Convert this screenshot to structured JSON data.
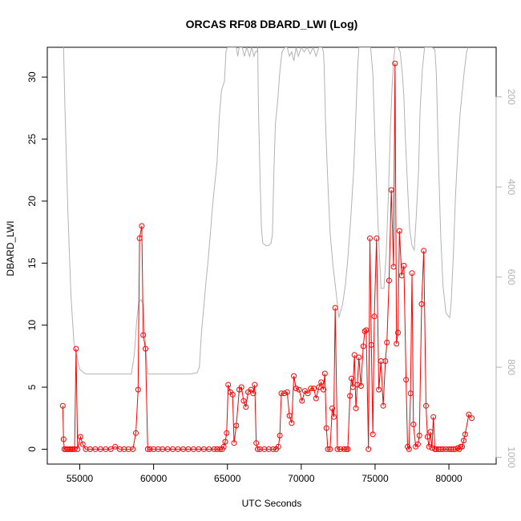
{
  "chart_data": {
    "type": "line",
    "title": "ORCAS RF08 DBARD_LWI (Log)",
    "xlabel": "UTC Seconds",
    "ylabel": "DBARD_LWI",
    "xlim": [
      52800,
      83200
    ],
    "ylim": [
      -1.2,
      32.4
    ],
    "x_ticks": [
      55000,
      60000,
      65000,
      70000,
      75000,
      80000
    ],
    "y_ticks": [
      0,
      5,
      10,
      15,
      20,
      25,
      30
    ],
    "y2_ticks": [
      200,
      400,
      600,
      800,
      1000
    ],
    "y2_reversed": true,
    "y2lim": [
      1015,
      90
    ],
    "grid": false,
    "series": [
      {
        "role": "primary",
        "color": "#ff0000",
        "marker": "open-circle",
        "line": true,
        "points": [
          [
            53850,
            3.5
          ],
          [
            53900,
            0.8
          ],
          [
            53950,
            0.0
          ],
          [
            54050,
            0.0
          ],
          [
            54150,
            0.0
          ],
          [
            54250,
            0.0
          ],
          [
            54350,
            0.0
          ],
          [
            54450,
            0.0
          ],
          [
            54550,
            0.0
          ],
          [
            54650,
            0.0
          ],
          [
            54750,
            8.1
          ],
          [
            54850,
            0.0
          ],
          [
            55050,
            1.0
          ],
          [
            55200,
            0.4
          ],
          [
            55400,
            0.0
          ],
          [
            55700,
            0.0
          ],
          [
            56050,
            0.0
          ],
          [
            56400,
            0.0
          ],
          [
            56750,
            0.0
          ],
          [
            57100,
            0.0
          ],
          [
            57400,
            0.2
          ],
          [
            57700,
            0.0
          ],
          [
            58000,
            0.0
          ],
          [
            58300,
            0.0
          ],
          [
            58600,
            0.0
          ],
          [
            58800,
            1.3
          ],
          [
            58950,
            4.8
          ],
          [
            59050,
            17.0
          ],
          [
            59200,
            18.0
          ],
          [
            59300,
            9.2
          ],
          [
            59450,
            8.1
          ],
          [
            59600,
            0.0
          ],
          [
            59750,
            0.0
          ],
          [
            60000,
            0.0
          ],
          [
            60300,
            0.0
          ],
          [
            60600,
            0.0
          ],
          [
            60950,
            0.0
          ],
          [
            61300,
            0.0
          ],
          [
            61650,
            0.0
          ],
          [
            62000,
            0.0
          ],
          [
            62350,
            0.0
          ],
          [
            62700,
            0.0
          ],
          [
            63050,
            0.0
          ],
          [
            63400,
            0.0
          ],
          [
            63750,
            0.0
          ],
          [
            64100,
            0.0
          ],
          [
            64300,
            0.0
          ],
          [
            64500,
            0.0
          ],
          [
            64650,
            0.0
          ],
          [
            64750,
            0.2
          ],
          [
            64850,
            0.6
          ],
          [
            64950,
            1.3
          ],
          [
            65050,
            5.2
          ],
          [
            65200,
            4.6
          ],
          [
            65350,
            4.4
          ],
          [
            65450,
            0.5
          ],
          [
            65600,
            1.9
          ],
          [
            65800,
            4.8
          ],
          [
            65950,
            5.0
          ],
          [
            66100,
            3.9
          ],
          [
            66250,
            3.4
          ],
          [
            66400,
            4.6
          ],
          [
            66600,
            4.8
          ],
          [
            66750,
            4.5
          ],
          [
            66850,
            5.2
          ],
          [
            66950,
            0.5
          ],
          [
            67050,
            0.0
          ],
          [
            67200,
            0.0
          ],
          [
            67500,
            0.0
          ],
          [
            67800,
            0.0
          ],
          [
            68100,
            0.0
          ],
          [
            68300,
            0.0
          ],
          [
            68450,
            0.2
          ],
          [
            68550,
            1.1
          ],
          [
            68650,
            4.5
          ],
          [
            68850,
            4.5
          ],
          [
            69050,
            4.6
          ],
          [
            69200,
            2.7
          ],
          [
            69350,
            2.1
          ],
          [
            69500,
            5.9
          ],
          [
            69650,
            4.9
          ],
          [
            69850,
            4.8
          ],
          [
            70050,
            3.9
          ],
          [
            70250,
            4.7
          ],
          [
            70450,
            4.5
          ],
          [
            70650,
            4.9
          ],
          [
            70850,
            4.9
          ],
          [
            71000,
            4.1
          ],
          [
            71200,
            5.0
          ],
          [
            71350,
            5.4
          ],
          [
            71500,
            4.8
          ],
          [
            71600,
            6.1
          ],
          [
            71700,
            1.7
          ],
          [
            71800,
            0.0
          ],
          [
            71950,
            0.0
          ],
          [
            72100,
            3.3
          ],
          [
            72200,
            2.6
          ],
          [
            72300,
            11.4
          ],
          [
            72450,
            0.0
          ],
          [
            72650,
            0.0
          ],
          [
            72900,
            0.0
          ],
          [
            73050,
            0.0
          ],
          [
            73150,
            0.0
          ],
          [
            73300,
            4.3
          ],
          [
            73400,
            5.7
          ],
          [
            73500,
            5.0
          ],
          [
            73600,
            7.6
          ],
          [
            73700,
            3.3
          ],
          [
            73800,
            5.2
          ],
          [
            73900,
            7.4
          ],
          [
            74050,
            5.1
          ],
          [
            74200,
            8.3
          ],
          [
            74300,
            9.5
          ],
          [
            74400,
            9.6
          ],
          [
            74550,
            0.0
          ],
          [
            74650,
            17.0
          ],
          [
            74750,
            8.4
          ],
          [
            74850,
            1.2
          ],
          [
            74950,
            10.7
          ],
          [
            75100,
            17.0
          ],
          [
            75250,
            4.8
          ],
          [
            75400,
            7.1
          ],
          [
            75550,
            3.5
          ],
          [
            75700,
            7.1
          ],
          [
            75800,
            8.6
          ],
          [
            75950,
            13.6
          ],
          [
            76100,
            20.9
          ],
          [
            76250,
            14.7
          ],
          [
            76350,
            31.1
          ],
          [
            76450,
            8.5
          ],
          [
            76550,
            9.4
          ],
          [
            76650,
            17.6
          ],
          [
            76800,
            14.0
          ],
          [
            76950,
            14.8
          ],
          [
            77100,
            5.6
          ],
          [
            77200,
            0.2
          ],
          [
            77300,
            0.0
          ],
          [
            77400,
            4.5
          ],
          [
            77500,
            14.2
          ],
          [
            77600,
            2.0
          ],
          [
            77750,
            0.2
          ],
          [
            77900,
            0.4
          ],
          [
            78000,
            1.1
          ],
          [
            78150,
            11.7
          ],
          [
            78300,
            16.0
          ],
          [
            78450,
            3.5
          ],
          [
            78550,
            1.0
          ],
          [
            78650,
            0.2
          ],
          [
            78750,
            1.4
          ],
          [
            78850,
            0.1
          ],
          [
            78950,
            2.6
          ],
          [
            79050,
            0.0
          ],
          [
            79150,
            0.0
          ],
          [
            79300,
            0.0
          ],
          [
            79450,
            0.0
          ],
          [
            79600,
            0.0
          ],
          [
            79800,
            0.0
          ],
          [
            80000,
            0.0
          ],
          [
            80150,
            0.0
          ],
          [
            80300,
            0.0
          ],
          [
            80450,
            0.0
          ],
          [
            80600,
            0.1
          ],
          [
            80700,
            0.0
          ],
          [
            80800,
            0.2
          ],
          [
            80900,
            0.2
          ],
          [
            81000,
            0.7
          ],
          [
            81100,
            1.2
          ],
          [
            81350,
            2.8
          ],
          [
            81550,
            2.5
          ]
        ]
      },
      {
        "role": "secondary",
        "color": "#b3b3b3",
        "marker": "none",
        "line": true,
        "axis": "right",
        "points": [
          [
            53900,
            90
          ],
          [
            54000,
            230
          ],
          [
            54200,
            460
          ],
          [
            54400,
            640
          ],
          [
            54600,
            745
          ],
          [
            55000,
            805
          ],
          [
            55400,
            815
          ],
          [
            56000,
            815
          ],
          [
            57000,
            815
          ],
          [
            58000,
            815
          ],
          [
            58500,
            815
          ],
          [
            58700,
            770
          ],
          [
            58850,
            700
          ],
          [
            59000,
            655
          ],
          [
            59150,
            650
          ],
          [
            59300,
            660
          ],
          [
            59450,
            750
          ],
          [
            59600,
            815
          ],
          [
            60500,
            815
          ],
          [
            61500,
            815
          ],
          [
            62500,
            815
          ],
          [
            62950,
            812
          ],
          [
            63100,
            800
          ],
          [
            63250,
            720
          ],
          [
            63400,
            665
          ],
          [
            63550,
            610
          ],
          [
            63700,
            560
          ],
          [
            63850,
            500
          ],
          [
            64000,
            440
          ],
          [
            64150,
            390
          ],
          [
            64300,
            345
          ],
          [
            64450,
            245
          ],
          [
            64600,
            185
          ],
          [
            64800,
            165
          ],
          [
            64900,
            100
          ],
          [
            65000,
            90
          ],
          [
            65400,
            90
          ],
          [
            65500,
            90
          ],
          [
            65600,
            90
          ],
          [
            65700,
            110
          ],
          [
            65800,
            90
          ],
          [
            66000,
            90
          ],
          [
            66150,
            110
          ],
          [
            66300,
            90
          ],
          [
            66500,
            110
          ],
          [
            66650,
            90
          ],
          [
            66800,
            110
          ],
          [
            66900,
            100
          ],
          [
            67000,
            100
          ],
          [
            67050,
            90
          ],
          [
            67100,
            220
          ],
          [
            67200,
            370
          ],
          [
            67300,
            490
          ],
          [
            67400,
            525
          ],
          [
            67600,
            530
          ],
          [
            67800,
            530
          ],
          [
            67950,
            525
          ],
          [
            68050,
            505
          ],
          [
            68150,
            360
          ],
          [
            68250,
            260
          ],
          [
            68400,
            210
          ],
          [
            68550,
            145
          ],
          [
            68700,
            100
          ],
          [
            68900,
            90
          ],
          [
            69050,
            90
          ],
          [
            69200,
            110
          ],
          [
            69350,
            100
          ],
          [
            69500,
            120
          ],
          [
            69650,
            90
          ],
          [
            69800,
            110
          ],
          [
            70000,
            90
          ],
          [
            70200,
            100
          ],
          [
            70400,
            90
          ],
          [
            70600,
            105
          ],
          [
            70800,
            90
          ],
          [
            71000,
            110
          ],
          [
            71200,
            90
          ],
          [
            71400,
            90
          ],
          [
            71500,
            100
          ],
          [
            71550,
            130
          ],
          [
            71650,
            260
          ],
          [
            71800,
            390
          ],
          [
            71950,
            500
          ],
          [
            72150,
            575
          ],
          [
            72350,
            630
          ],
          [
            72550,
            690
          ],
          [
            72800,
            660
          ],
          [
            73000,
            615
          ],
          [
            73150,
            560
          ],
          [
            73350,
            470
          ],
          [
            73550,
            365
          ],
          [
            73700,
            240
          ],
          [
            73800,
            150
          ],
          [
            73900,
            90
          ],
          [
            74100,
            90
          ],
          [
            74300,
            90
          ],
          [
            74500,
            90
          ],
          [
            74700,
            90
          ],
          [
            74850,
            150
          ],
          [
            75000,
            300
          ],
          [
            75200,
            480
          ],
          [
            75400,
            625
          ],
          [
            75600,
            625
          ],
          [
            75750,
            550
          ],
          [
            75900,
            420
          ],
          [
            76050,
            260
          ],
          [
            76150,
            180
          ],
          [
            76250,
            120
          ],
          [
            76350,
            90
          ],
          [
            76550,
            90
          ],
          [
            76700,
            100
          ],
          [
            76850,
            150
          ],
          [
            76950,
            200
          ],
          [
            77050,
            290
          ],
          [
            77200,
            400
          ],
          [
            77350,
            495
          ],
          [
            77500,
            530
          ],
          [
            77650,
            540
          ],
          [
            77800,
            460
          ],
          [
            77950,
            360
          ],
          [
            78050,
            230
          ],
          [
            78200,
            140
          ],
          [
            78350,
            90
          ],
          [
            78600,
            90
          ],
          [
            78850,
            90
          ],
          [
            79050,
            95
          ],
          [
            79150,
            150
          ],
          [
            79300,
            350
          ],
          [
            79450,
            510
          ],
          [
            79600,
            620
          ],
          [
            79800,
            680
          ],
          [
            80050,
            690
          ],
          [
            80150,
            660
          ],
          [
            80300,
            550
          ],
          [
            80450,
            420
          ],
          [
            80600,
            320
          ],
          [
            80750,
            240
          ],
          [
            80900,
            190
          ],
          [
            81050,
            140
          ],
          [
            81200,
            100
          ],
          [
            81300,
            90
          ]
        ]
      }
    ]
  }
}
